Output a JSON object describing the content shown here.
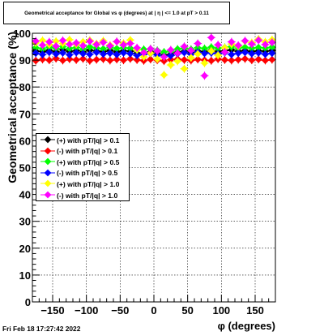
{
  "header": {
    "title": "Geometrical acceptance for Global vs φ (degrees) at | η | <= 1.0 at pT > 0.11"
  },
  "footer": {
    "timestamp": "Fri Feb 18 17:27:42 2022"
  },
  "chart_data": {
    "type": "scatter",
    "title": "Geometrical acceptance for Global vs φ (degrees) at | η | <= 1.0 at pT > 0.11",
    "xlabel": "φ (degrees)",
    "ylabel": "Geometrical acceptance (%)",
    "xlim": [
      -180,
      180
    ],
    "ylim": [
      0,
      100
    ],
    "x_ticks": [
      -150,
      -100,
      -50,
      0,
      50,
      100,
      150
    ],
    "x_tick_labels": [
      "−150",
      "−100",
      "−50",
      "0",
      "50",
      "100",
      "150"
    ],
    "y_ticks": [
      0,
      10,
      20,
      30,
      40,
      50,
      60,
      70,
      80,
      90,
      100
    ],
    "y_tick_labels": [
      "0",
      "10",
      "20",
      "30",
      "40",
      "50",
      "60",
      "70",
      "80",
      "90",
      "100"
    ],
    "grid": true,
    "legend_position": "middle-left",
    "marker": "diamond",
    "x": [
      -175,
      -165,
      -155,
      -145,
      -135,
      -125,
      -115,
      -105,
      -95,
      -85,
      -75,
      -65,
      -55,
      -45,
      -35,
      -25,
      -15,
      -5,
      5,
      15,
      25,
      35,
      45,
      55,
      65,
      75,
      85,
      95,
      105,
      115,
      125,
      135,
      145,
      155,
      165,
      175
    ],
    "series": [
      {
        "name": "(+) with pT/|q| > 0.1",
        "color": "#000000",
        "values": [
          93.4,
          93.2,
          93.6,
          93.1,
          93.8,
          93.3,
          93.5,
          93.0,
          93.7,
          93.4,
          93.2,
          93.6,
          93.1,
          93.5,
          93.3,
          92.6,
          92.8,
          93.0,
          92.4,
          91.8,
          92.2,
          92.9,
          93.3,
          92.8,
          93.4,
          93.1,
          93.6,
          93.2,
          93.5,
          93.8,
          93.3,
          93.6,
          93.2,
          93.5,
          93.3,
          93.6
        ]
      },
      {
        "name": "(-) with pT/|q| > 0.1",
        "color": "#ff0000",
        "values": [
          89.8,
          90.3,
          90.0,
          90.6,
          89.9,
          90.4,
          90.1,
          90.5,
          89.8,
          90.2,
          90.4,
          89.9,
          90.3,
          90.0,
          90.5,
          90.1,
          89.8,
          90.3,
          90.0,
          89.7,
          90.2,
          90.4,
          90.1,
          89.9,
          90.3,
          90.0,
          89.8,
          90.4,
          90.1,
          89.9,
          90.2,
          90.5,
          90.0,
          90.3,
          89.9,
          90.2
        ]
      },
      {
        "name": "(+) with pT/|q| > 0.5",
        "color": "#00ff00",
        "values": [
          94.6,
          94.2,
          94.8,
          94.4,
          95.0,
          94.3,
          94.7,
          94.1,
          94.9,
          94.5,
          94.2,
          94.8,
          94.3,
          94.6,
          94.4,
          93.8,
          94.0,
          94.2,
          93.6,
          93.0,
          93.4,
          94.1,
          94.5,
          94.0,
          94.6,
          94.3,
          94.8,
          94.4,
          94.7,
          95.0,
          94.5,
          94.8,
          94.4,
          94.7,
          94.5,
          94.8
        ]
      },
      {
        "name": "(-) with pT/|q| > 0.5",
        "color": "#0000ff",
        "values": [
          92.6,
          92.1,
          92.9,
          92.3,
          92.7,
          92.0,
          92.8,
          92.4,
          92.2,
          92.9,
          92.3,
          92.6,
          92.1,
          92.7,
          92.4,
          91.8,
          92.2,
          92.5,
          91.9,
          91.3,
          91.7,
          92.4,
          92.8,
          92.2,
          92.9,
          92.5,
          92.7,
          92.3,
          92.8,
          92.1,
          92.6,
          92.9,
          92.4,
          92.7,
          92.2,
          92.6
        ]
      },
      {
        "name": "(+) with pT/|q| > 1.0",
        "color": "#ffff00",
        "values": [
          96.4,
          97.3,
          95.8,
          97.0,
          96.2,
          97.6,
          95.9,
          96.8,
          97.4,
          96.1,
          97.2,
          95.6,
          96.9,
          96.3,
          97.5,
          93.8,
          91.2,
          92.6,
          90.4,
          84.5,
          88.2,
          89.6,
          86.8,
          90.9,
          92.3,
          88.9,
          93.4,
          91.8,
          94.6,
          96.0,
          95.2,
          97.1,
          96.5,
          97.8,
          96.8,
          97.6
        ]
      },
      {
        "name": "(-) with pT/|q| > 1.0",
        "color": "#ff00ff",
        "values": [
          97.1,
          95.6,
          96.8,
          95.2,
          97.3,
          95.9,
          96.4,
          95.4,
          97.0,
          95.8,
          96.6,
          95.3,
          96.9,
          95.7,
          96.2,
          94.6,
          92.8,
          94.2,
          93.4,
          91.2,
          93.8,
          92.6,
          95.1,
          93.6,
          96.2,
          84.2,
          98.4,
          95.7,
          93.0,
          96.8,
          95.5,
          97.2,
          96.0,
          97.4,
          95.8,
          96.6
        ]
      }
    ]
  }
}
